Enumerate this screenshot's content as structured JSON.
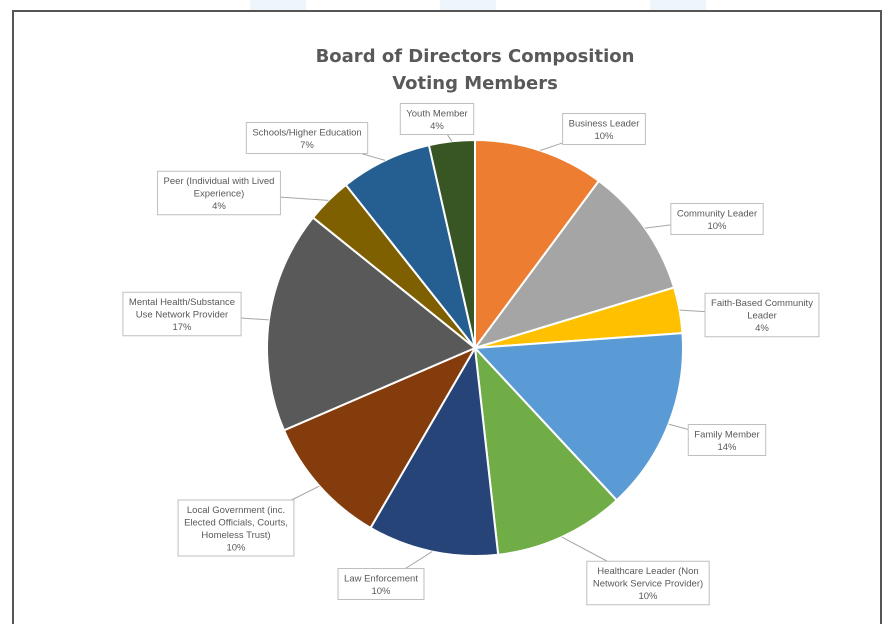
{
  "chart_data": {
    "type": "pie",
    "title": "Board of Directors Composition",
    "subtitle": "Voting Members",
    "slices": [
      {
        "name": "Business Leader",
        "value": 10,
        "pct_label": "10%",
        "color": "#ed7d31",
        "lines": [
          "Business Leader"
        ]
      },
      {
        "name": "Community Leader",
        "value": 10,
        "pct_label": "10%",
        "color": "#a5a5a5",
        "lines": [
          "Community Leader"
        ]
      },
      {
        "name": "Faith-Based Community Leader",
        "value": 3.5,
        "pct_label": "4%",
        "color": "#ffc000",
        "lines": [
          "Faith-Based Community",
          "Leader"
        ]
      },
      {
        "name": "Family Member",
        "value": 14,
        "pct_label": "14%",
        "color": "#5b9bd5",
        "lines": [
          "Family Member"
        ]
      },
      {
        "name": "Healthcare Leader (Non Network Service Provider)",
        "value": 10,
        "pct_label": "10%",
        "color": "#70ad47",
        "lines": [
          "Healthcare Leader (Non",
          "Network Service Provider)"
        ]
      },
      {
        "name": "Law Enforcement",
        "value": 10,
        "pct_label": "10%",
        "color": "#264478",
        "lines": [
          "Law Enforcement"
        ]
      },
      {
        "name": "Local Government (inc. Elected Officials, Courts, Homeless Trust)",
        "value": 10,
        "pct_label": "10%",
        "color": "#843c0c",
        "lines": [
          "Local Government (inc.",
          "Elected Officials, Courts,",
          "Homeless Trust)"
        ]
      },
      {
        "name": "Mental Health/Substance Use Network Provider",
        "value": 17,
        "pct_label": "17%",
        "color": "#595959",
        "lines": [
          "Mental Health/Substance",
          "Use Network Provider"
        ]
      },
      {
        "name": "Peer (Individual with Lived Experience)",
        "value": 3.5,
        "pct_label": "4%",
        "color": "#7f6000",
        "lines": [
          "Peer (Individual with Lived",
          "Experience)"
        ]
      },
      {
        "name": "Schools/Higher Education",
        "value": 7,
        "pct_label": "7%",
        "color": "#255e91",
        "lines": [
          "Schools/Higher Education"
        ]
      },
      {
        "name": "Youth Member",
        "value": 3.5,
        "pct_label": "4%",
        "color": "#375623",
        "lines": [
          "Youth Member"
        ]
      }
    ],
    "legend": "none"
  }
}
